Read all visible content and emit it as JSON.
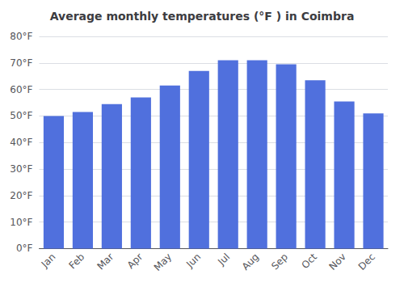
{
  "chart_data": {
    "type": "bar",
    "title": "Average monthly temperatures (°F ) in Coimbra",
    "categories": [
      "Jan",
      "Feb",
      "Mar",
      "Apr",
      "May",
      "Jun",
      "Jul",
      "Aug",
      "Sep",
      "Oct",
      "Nov",
      "Dec"
    ],
    "values": [
      50,
      51.5,
      54.5,
      57,
      61.5,
      67,
      71,
      71,
      69.5,
      63.5,
      55.5,
      51
    ],
    "ylim": [
      0,
      80
    ],
    "yticks": [
      {
        "value": 0,
        "label": "0°F"
      },
      {
        "value": 10,
        "label": "10°F"
      },
      {
        "value": 20,
        "label": "20°F"
      },
      {
        "value": 30,
        "label": "30°F"
      },
      {
        "value": 40,
        "label": "40°F"
      },
      {
        "value": 50,
        "label": "50°F"
      },
      {
        "value": 60,
        "label": "60°F"
      },
      {
        "value": 70,
        "label": "70°F"
      },
      {
        "value": 80,
        "label": "80°F"
      }
    ],
    "grid": true
  }
}
